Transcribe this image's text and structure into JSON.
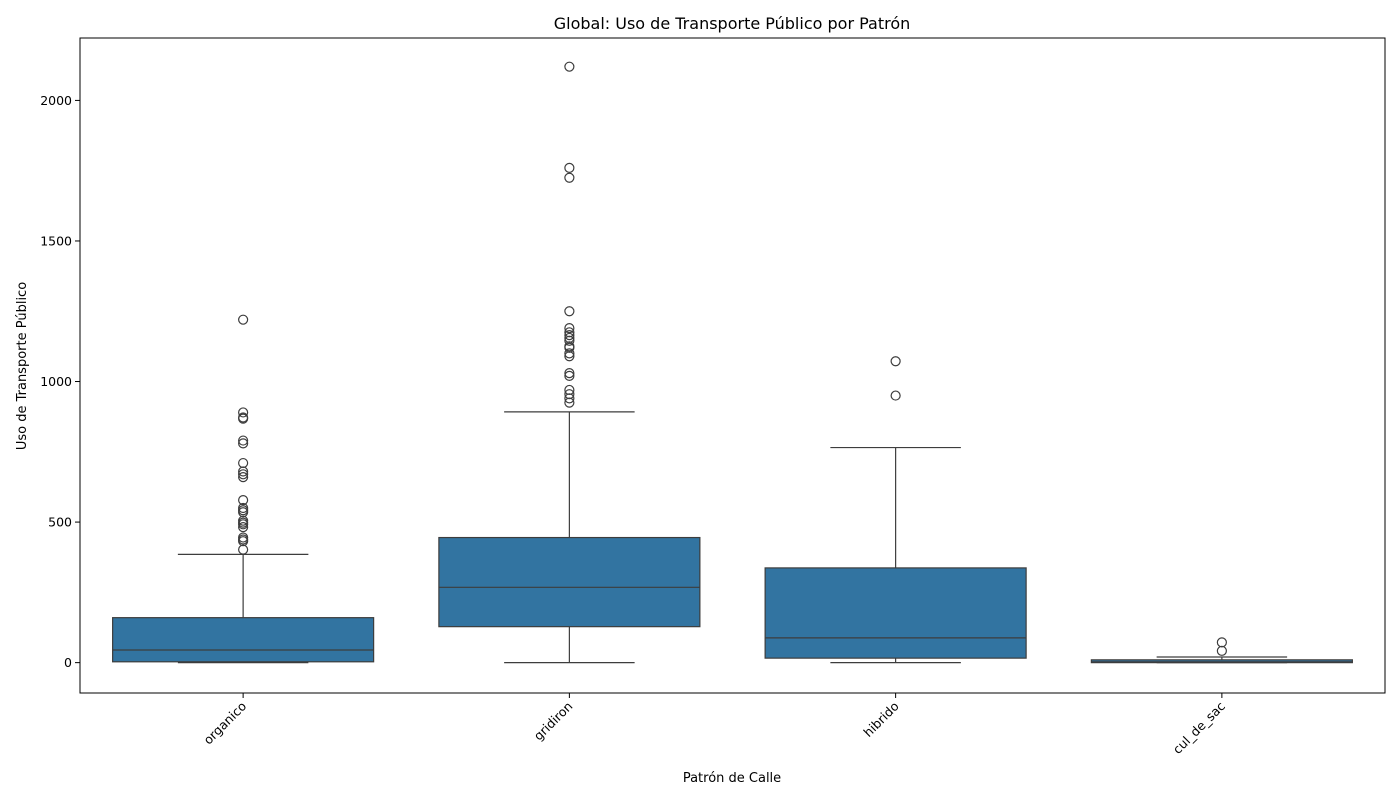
{
  "chart_data": {
    "type": "box",
    "title": "Global: Uso de Transporte Público por Patrón",
    "xlabel": "Patrón de Calle",
    "ylabel": "Uso de Transporte Público",
    "ylim": [
      -108,
      2222
    ],
    "yticks": [
      0,
      500,
      1000,
      1500,
      2000
    ],
    "grid": false,
    "legend": "none",
    "box_color": "#3274a1",
    "edge_color": "#3d3d3d",
    "categories": [
      "organico",
      "gridiron",
      "hibrido",
      "cul_de_sac"
    ],
    "boxes": [
      {
        "category": "organico",
        "whisker_low": 0,
        "q1": 3,
        "median": 45,
        "q3": 160,
        "whisker_high": 385,
        "outliers": [
          402,
          432,
          438,
          445,
          482,
          492,
          498,
          505,
          535,
          542,
          550,
          578,
          660,
          670,
          680,
          710,
          780,
          790,
          868,
          872,
          890,
          1220
        ]
      },
      {
        "category": "gridiron",
        "whisker_low": 0,
        "q1": 128,
        "median": 268,
        "q3": 445,
        "whisker_high": 892,
        "outliers": [
          925,
          940,
          955,
          970,
          1020,
          1030,
          1090,
          1100,
          1120,
          1125,
          1145,
          1155,
          1165,
          1175,
          1190,
          1250,
          1725,
          1760,
          2120
        ]
      },
      {
        "category": "hibrido",
        "whisker_low": 0,
        "q1": 16,
        "median": 88,
        "q3": 337,
        "whisker_high": 765,
        "outliers": [
          950,
          1072
        ]
      },
      {
        "category": "cul_de_sac",
        "whisker_low": 0,
        "q1": 0,
        "median": 3,
        "q3": 10,
        "whisker_high": 20,
        "outliers": [
          42,
          72
        ]
      }
    ]
  }
}
